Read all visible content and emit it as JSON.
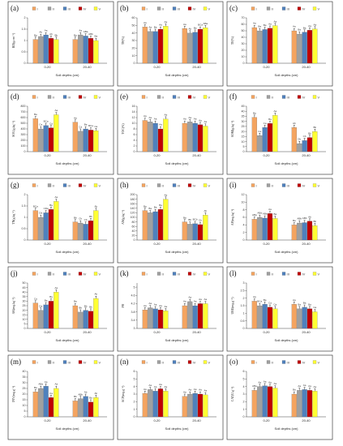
{
  "legend": {
    "entries": [
      "I",
      "II",
      "III",
      "IV",
      "V"
    ],
    "colors": [
      "#f4a460",
      "#a0a0a0",
      "#4f81bd",
      "#c00000",
      "#ffff33"
    ]
  },
  "x_groups": [
    "0-20",
    "20-40"
  ],
  "x_axis_title": "Soil depths (cm)",
  "chart_data": [
    {
      "type": "bar",
      "tag": "(a)",
      "ylabel": "BD(g.cm⁻³)",
      "ylim": [
        0,
        2
      ],
      "yticks": [
        0,
        0.5,
        1,
        1.5,
        2
      ],
      "series": [
        {
          "name": "I",
          "values": [
            1.05,
            1.05
          ]
        },
        {
          "name": "II",
          "values": [
            1.18,
            1.25
          ]
        },
        {
          "name": "III",
          "values": [
            1.25,
            1.2
          ]
        },
        {
          "name": "IV",
          "values": [
            1.1,
            1.1
          ]
        },
        {
          "name": "V",
          "values": [
            1.05,
            1.0
          ]
        }
      ],
      "letters": [
        [
          "Ba",
          "Ab",
          "Aa",
          "Ab",
          "Bb"
        ],
        [
          "Ba",
          "Aa",
          "ABa",
          "ABb",
          "Ba"
        ]
      ]
    },
    {
      "type": "bar",
      "tag": "(b)",
      "ylabel": "TP(%)",
      "ylim": [
        0,
        60
      ],
      "yticks": [
        0,
        10,
        20,
        30,
        40,
        50,
        60
      ],
      "series": [
        {
          "name": "I",
          "values": [
            48,
            46
          ]
        },
        {
          "name": "II",
          "values": [
            42,
            40
          ]
        },
        {
          "name": "III",
          "values": [
            42,
            41
          ]
        },
        {
          "name": "IV",
          "values": [
            45,
            45
          ]
        },
        {
          "name": "V",
          "values": [
            49,
            47
          ]
        }
      ],
      "letters": [
        [
          "Aa",
          "Aa",
          "Ba",
          "Aa",
          "Aa"
        ],
        [
          "Aa",
          "Ab",
          "Ba",
          "BCa",
          "ABa"
        ]
      ]
    },
    {
      "type": "bar",
      "tag": "(c)",
      "ylabel": "TF(%)",
      "ylim": [
        0,
        70
      ],
      "yticks": [
        0,
        10,
        20,
        30,
        40,
        50,
        60,
        70
      ],
      "series": [
        {
          "name": "I",
          "values": [
            55,
            50
          ]
        },
        {
          "name": "II",
          "values": [
            50,
            45
          ]
        },
        {
          "name": "III",
          "values": [
            52,
            48
          ]
        },
        {
          "name": "IV",
          "values": [
            54,
            51
          ]
        },
        {
          "name": "V",
          "values": [
            58,
            53
          ]
        }
      ],
      "letters": [
        [
          "Aa",
          "Ba",
          "Ba",
          "Aa",
          "Aa"
        ],
        [
          "Aa",
          "Ba",
          "Ba",
          "Aa",
          "Aa"
        ]
      ]
    },
    {
      "type": "bar",
      "tag": "(d)",
      "ylabel": "SOC(g.kg⁻¹)",
      "ylim": [
        0,
        800
      ],
      "yticks": [
        0,
        100,
        200,
        300,
        400,
        500,
        600,
        700,
        800
      ],
      "series": [
        {
          "name": "I",
          "values": [
            580,
            520
          ]
        },
        {
          "name": "II",
          "values": [
            400,
            360
          ]
        },
        {
          "name": "III",
          "values": [
            460,
            400
          ]
        },
        {
          "name": "IV",
          "values": [
            420,
            380
          ]
        },
        {
          "name": "V",
          "values": [
            650,
            370
          ]
        }
      ],
      "letters": [
        [
          "Ba",
          "Ca",
          "BCa",
          "Ca",
          "Aa"
        ],
        [
          "Aa",
          "Ca",
          "Ba",
          "BCa",
          "Ca"
        ]
      ]
    },
    {
      "type": "bar",
      "tag": "(e)",
      "ylabel": "TOC(%)",
      "ylim": [
        0,
        16
      ],
      "yticks": [
        0,
        2,
        4,
        6,
        8,
        10,
        12,
        14,
        16
      ],
      "series": [
        {
          "name": "I",
          "values": [
            11,
            10
          ]
        },
        {
          "name": "II",
          "values": [
            10.5,
            10.5
          ]
        },
        {
          "name": "III",
          "values": [
            10,
            10
          ]
        },
        {
          "name": "IV",
          "values": [
            8,
            9.5
          ]
        },
        {
          "name": "V",
          "values": [
            11.5,
            9
          ]
        }
      ],
      "letters": [
        [
          "Aa",
          "Aa",
          "Aa",
          "Aa",
          "Aa"
        ],
        [
          "Aa",
          "Aa",
          "Aa",
          "Aa",
          "Aa"
        ]
      ]
    },
    {
      "type": "bar",
      "tag": "(f)",
      "ylabel": "SOM(g.kg⁻¹)",
      "ylim": [
        0,
        45
      ],
      "yticks": [
        0,
        5,
        10,
        15,
        20,
        25,
        30,
        35,
        40,
        45
      ],
      "series": [
        {
          "name": "I",
          "values": [
            34,
            24
          ]
        },
        {
          "name": "II",
          "values": [
            16,
            8
          ]
        },
        {
          "name": "III",
          "values": [
            24,
            11
          ]
        },
        {
          "name": "IV",
          "values": [
            28,
            14
          ]
        },
        {
          "name": "V",
          "values": [
            36,
            20
          ]
        }
      ],
      "letters": [
        [
          "Ba",
          "Ca",
          "Ca",
          "Ba",
          "Aa"
        ],
        [
          "Ab",
          "Db",
          "Cb",
          "Bb",
          "Bb"
        ]
      ]
    },
    {
      "type": "bar",
      "tag": "(g)",
      "ylabel": "TN(g.kg⁻¹)",
      "ylim": [
        0,
        2
      ],
      "yticks": [
        0,
        0.5,
        1,
        1.5,
        2
      ],
      "series": [
        {
          "name": "I",
          "values": [
            1.3,
            0.8
          ]
        },
        {
          "name": "II",
          "values": [
            1.0,
            0.75
          ]
        },
        {
          "name": "III",
          "values": [
            1.2,
            0.7
          ]
        },
        {
          "name": "IV",
          "values": [
            1.35,
            0.85
          ]
        },
        {
          "name": "V",
          "values": [
            1.7,
            1.3
          ]
        }
      ],
      "letters": [
        [
          "BCa",
          "Da",
          "CDa",
          "Ba",
          "Aa"
        ],
        [
          "Bb",
          "Cb",
          "Cb",
          "Bb",
          "Ab"
        ]
      ]
    },
    {
      "type": "bar",
      "tag": "(h)",
      "ylabel": "AN(g.kg⁻¹)",
      "ylim": [
        0,
        200
      ],
      "yticks": [
        0,
        20,
        40,
        60,
        80,
        100,
        120,
        140,
        160,
        180,
        200
      ],
      "series": [
        {
          "name": "I",
          "values": [
            130,
            80
          ]
        },
        {
          "name": "II",
          "values": [
            120,
            70
          ]
        },
        {
          "name": "III",
          "values": [
            125,
            72
          ]
        },
        {
          "name": "IV",
          "values": [
            135,
            68
          ]
        },
        {
          "name": "V",
          "values": [
            180,
            110
          ]
        }
      ],
      "letters": [
        [
          "Ba",
          "Ba",
          "Ba",
          "Ba",
          "Aa"
        ],
        [
          "Ba",
          "Bb",
          "BCb",
          "Cb",
          "Ab"
        ]
      ]
    },
    {
      "type": "bar",
      "tag": "(i)",
      "ylabel": "AP(mg.kg⁻¹)",
      "ylim": [
        0,
        12
      ],
      "yticks": [
        0,
        2,
        4,
        6,
        8,
        10,
        12
      ],
      "series": [
        {
          "name": "I",
          "values": [
            5.5,
            4
          ]
        },
        {
          "name": "II",
          "values": [
            6,
            4.5
          ]
        },
        {
          "name": "III",
          "values": [
            5.8,
            4.6
          ]
        },
        {
          "name": "IV",
          "values": [
            7,
            5
          ]
        },
        {
          "name": "V",
          "values": [
            5.7,
            3.8
          ]
        }
      ],
      "letters": [
        [
          "ABa",
          "ABa",
          "ABa",
          "Aa",
          "Ba"
        ],
        [
          "Ba",
          "ABb",
          "ABb",
          "Ab",
          "Bb"
        ]
      ]
    },
    {
      "type": "bar",
      "tag": "(j)",
      "ylabel": "AK(mg.kg⁻¹)",
      "ylim": [
        0,
        50
      ],
      "yticks": [
        0,
        5,
        10,
        15,
        20,
        25,
        30,
        35,
        40,
        45,
        50
      ],
      "series": [
        {
          "name": "I",
          "values": [
            28,
            25
          ]
        },
        {
          "name": "II",
          "values": [
            20,
            18
          ]
        },
        {
          "name": "III",
          "values": [
            26,
            20
          ]
        },
        {
          "name": "IV",
          "values": [
            30,
            19
          ]
        },
        {
          "name": "V",
          "values": [
            40,
            33
          ]
        }
      ],
      "letters": [
        [
          "Ca",
          "Da",
          "Ba",
          "Ba",
          "Aa"
        ],
        [
          "Ba",
          "Bb",
          "Bb",
          "Bb",
          "Ab"
        ]
      ]
    },
    {
      "type": "bar",
      "tag": "(k)",
      "ylabel": "PH",
      "ylim": [
        3,
        5.2
      ],
      "yticks": [
        3.0,
        3.4,
        3.8,
        4.2,
        4.6,
        5.0
      ],
      "series": [
        {
          "name": "I",
          "values": [
            3.9,
            4.1
          ]
        },
        {
          "name": "II",
          "values": [
            4.0,
            4.3
          ]
        },
        {
          "name": "III",
          "values": [
            3.95,
            4.1
          ]
        },
        {
          "name": "IV",
          "values": [
            3.9,
            4.2
          ]
        },
        {
          "name": "V",
          "values": [
            3.85,
            4.2
          ]
        }
      ],
      "letters": [
        [
          "Aa",
          "Aa",
          "Aa",
          "Aa",
          "Aa"
        ],
        [
          "Aa",
          "Aa",
          "Aa",
          "Aa",
          "Aa"
        ]
      ]
    },
    {
      "type": "bar",
      "tag": "(l)",
      "ylabel": "URE(mg.g⁻¹)",
      "ylim": [
        0,
        3
      ],
      "yticks": [
        0,
        0.5,
        1,
        1.5,
        2,
        2.5,
        3
      ],
      "series": [
        {
          "name": "I",
          "values": [
            1.8,
            1.6
          ]
        },
        {
          "name": "II",
          "values": [
            1.5,
            1.3
          ]
        },
        {
          "name": "III",
          "values": [
            1.6,
            1.4
          ]
        },
        {
          "name": "IV",
          "values": [
            1.4,
            1.3
          ]
        },
        {
          "name": "V",
          "values": [
            1.3,
            1.1
          ]
        }
      ],
      "letters": [
        [
          "Aa",
          "BCa",
          "Ba",
          "Ca",
          "Ca"
        ],
        [
          "Aa",
          "Ba",
          "Ba",
          "Ba",
          "Ca"
        ]
      ]
    },
    {
      "type": "bar",
      "tag": "(m)",
      "ylabel": "INV(mg.g⁻¹)",
      "ylim": [
        0,
        40
      ],
      "yticks": [
        0,
        5,
        10,
        15,
        20,
        25,
        30,
        35,
        40
      ],
      "series": [
        {
          "name": "I",
          "values": [
            22,
            14
          ]
        },
        {
          "name": "II",
          "values": [
            25,
            16
          ]
        },
        {
          "name": "III",
          "values": [
            27,
            18
          ]
        },
        {
          "name": "IV",
          "values": [
            17,
            13
          ]
        },
        {
          "name": "V",
          "values": [
            25,
            17
          ]
        }
      ],
      "letters": [
        [
          "Ba",
          "ABa",
          "Aa",
          "Ca",
          "Aa"
        ],
        [
          "Bb",
          "ABb",
          "Ab",
          "Ba",
          "Ab"
        ]
      ]
    },
    {
      "type": "bar",
      "tag": "(n)",
      "ylabel": "ACP(mg.g⁻¹)",
      "ylim": [
        0,
        6
      ],
      "yticks": [
        0,
        1,
        2,
        3,
        4,
        5,
        6
      ],
      "series": [
        {
          "name": "I",
          "values": [
            3.1,
            2.7
          ]
        },
        {
          "name": "II",
          "values": [
            3.6,
            3.0
          ]
        },
        {
          "name": "III",
          "values": [
            3.4,
            3.1
          ]
        },
        {
          "name": "IV",
          "values": [
            3.7,
            3.0
          ]
        },
        {
          "name": "V",
          "values": [
            3.4,
            2.9
          ]
        }
      ],
      "letters": [
        [
          "Aa",
          "Aa",
          "Aa",
          "Aa",
          "Aa"
        ],
        [
          "Aa",
          "Aa",
          "Aa",
          "Aa",
          "Aa"
        ]
      ]
    },
    {
      "type": "bar",
      "tag": "(o)",
      "ylabel": "CAT(U.g⁻¹)",
      "ylim": [
        0,
        6
      ],
      "yticks": [
        0,
        1,
        2,
        3,
        4,
        5,
        6
      ],
      "series": [
        {
          "name": "I",
          "values": [
            3.5,
            3.0
          ]
        },
        {
          "name": "II",
          "values": [
            4.0,
            3.5
          ]
        },
        {
          "name": "III",
          "values": [
            4.1,
            3.6
          ]
        },
        {
          "name": "IV",
          "values": [
            4.0,
            3.5
          ]
        },
        {
          "name": "V",
          "values": [
            3.8,
            3.4
          ]
        }
      ],
      "letters": [
        [
          "ABa",
          "Aa",
          "Aa",
          "Aa",
          "Aa"
        ],
        [
          "Ba",
          "Aa",
          "Aa",
          "Aa",
          "Aa"
        ]
      ]
    }
  ]
}
